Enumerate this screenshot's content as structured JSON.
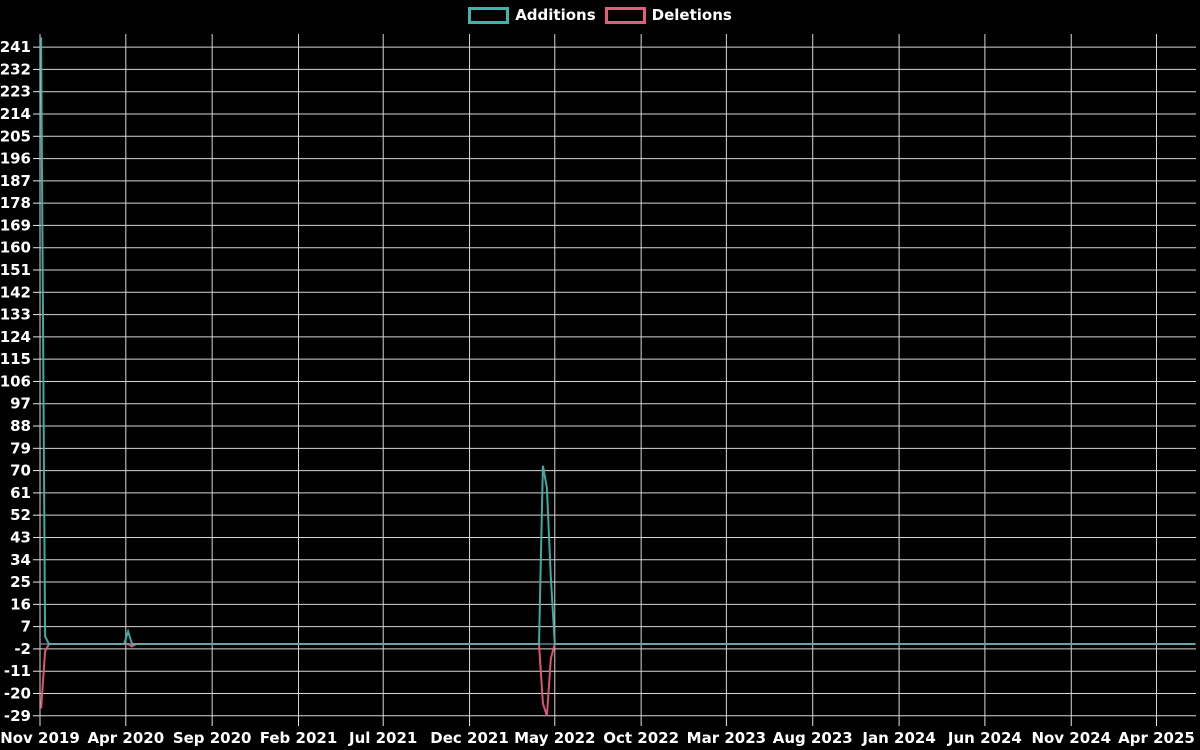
{
  "legend": {
    "items": [
      {
        "label": "Additions",
        "color": "#40b3ad"
      },
      {
        "label": "Deletions",
        "color": "#e55c79"
      }
    ]
  },
  "chart": {
    "background": "#000000",
    "grid_color": "#d6d6d6",
    "tick_color": "#e8e8e8",
    "label_color": "#ffffff",
    "baseline_blend_color": "#7f9fab"
  },
  "chart_data": {
    "type": "line",
    "title": "",
    "xlabel": "",
    "ylabel": "",
    "grid": true,
    "legend_position": "top-center",
    "legend": [
      "Additions",
      "Deletions"
    ],
    "x_range": [
      "2019-11-01",
      "2025-06-10"
    ],
    "y_range": [
      -30.3,
      246.3
    ],
    "y_tick_step": 9,
    "y_ticks": [
      241,
      232,
      223,
      214,
      205,
      196,
      187,
      178,
      169,
      160,
      151,
      142,
      133,
      124,
      115,
      106,
      97,
      88,
      79,
      70,
      61,
      52,
      43,
      34,
      25,
      16,
      7,
      -2,
      -11,
      -20,
      -29
    ],
    "x_ticks": [
      {
        "label": "Nov 2019",
        "date": "2019-11-01"
      },
      {
        "label": "Apr 2020",
        "date": "2020-04-01"
      },
      {
        "label": "Sep 2020",
        "date": "2020-09-01"
      },
      {
        "label": "Feb 2021",
        "date": "2021-02-01"
      },
      {
        "label": "Jul 2021",
        "date": "2021-07-01"
      },
      {
        "label": "Dec 2021",
        "date": "2021-12-01"
      },
      {
        "label": "May 2022",
        "date": "2022-05-01"
      },
      {
        "label": "Oct 2022",
        "date": "2022-10-01"
      },
      {
        "label": "Mar 2023",
        "date": "2023-03-01"
      },
      {
        "label": "Aug 2023",
        "date": "2023-08-01"
      },
      {
        "label": "Jan 2024",
        "date": "2024-01-01"
      },
      {
        "label": "Jun 2024",
        "date": "2024-06-01"
      },
      {
        "label": "Nov 2024",
        "date": "2024-11-01"
      },
      {
        "label": "Apr 2025",
        "date": "2025-04-01"
      }
    ],
    "series": [
      {
        "name": "Additions",
        "color": "#40b3ad",
        "points": [
          [
            "2019-11-03",
            245
          ],
          [
            "2019-11-10",
            3
          ],
          [
            "2019-11-17",
            0
          ],
          [
            "2020-03-29",
            0
          ],
          [
            "2020-04-05",
            5
          ],
          [
            "2020-04-12",
            0
          ],
          [
            "2022-04-03",
            0
          ],
          [
            "2022-04-10",
            72
          ],
          [
            "2022-04-17",
            63
          ],
          [
            "2022-04-24",
            27
          ],
          [
            "2022-05-01",
            0
          ],
          [
            "2025-06-08",
            0
          ]
        ]
      },
      {
        "name": "Deletions",
        "color": "#e55c79",
        "points": [
          [
            "2019-11-03",
            -26
          ],
          [
            "2019-11-10",
            -3
          ],
          [
            "2019-11-17",
            0
          ],
          [
            "2020-04-05",
            0
          ],
          [
            "2020-04-12",
            -1
          ],
          [
            "2020-04-19",
            0
          ],
          [
            "2022-04-03",
            0
          ],
          [
            "2022-04-10",
            -24
          ],
          [
            "2022-04-17",
            -29
          ],
          [
            "2022-04-24",
            -6
          ],
          [
            "2022-05-01",
            0
          ],
          [
            "2025-06-08",
            0
          ]
        ]
      }
    ]
  }
}
